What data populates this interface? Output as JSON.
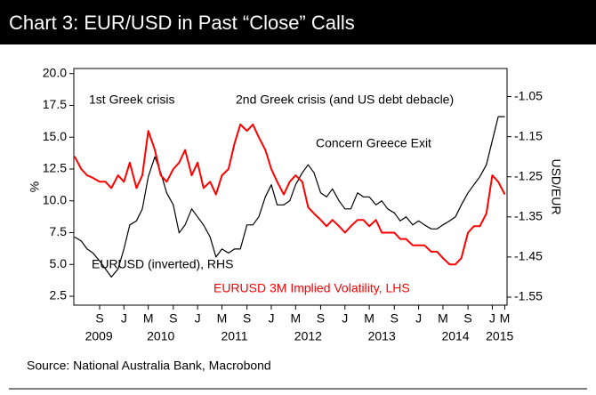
{
  "chart_data": {
    "type": "line",
    "title": "Chart 3: EUR/USD in Past “Close” Calls",
    "ylabel": "%",
    "y2label": "USD/EUR",
    "source": "Source: National Australia Bank, Macrobond",
    "annotations": [
      "1st Greek crisis",
      "2nd Greek crisis (and US debt debacle)",
      "Concern Greece Exit"
    ],
    "x": [
      2009.33,
      2009.42,
      2009.5,
      2009.58,
      2009.67,
      2009.75,
      2009.83,
      2009.92,
      2010,
      2010.08,
      2010.17,
      2010.25,
      2010.33,
      2010.42,
      2010.5,
      2010.58,
      2010.67,
      2010.75,
      2010.83,
      2010.92,
      2011,
      2011.08,
      2011.17,
      2011.25,
      2011.33,
      2011.42,
      2011.5,
      2011.58,
      2011.67,
      2011.75,
      2011.83,
      2011.92,
      2012,
      2012.08,
      2012.17,
      2012.25,
      2012.33,
      2012.42,
      2012.5,
      2012.58,
      2012.67,
      2012.75,
      2012.83,
      2012.92,
      2013,
      2013.08,
      2013.17,
      2013.25,
      2013.33,
      2013.42,
      2013.5,
      2013.58,
      2013.67,
      2013.75,
      2013.83,
      2013.92,
      2014,
      2014.08,
      2014.17,
      2014.25,
      2014.33,
      2014.42,
      2014.5,
      2014.58,
      2014.67,
      2014.75,
      2014.83,
      2014.92,
      2015,
      2015.08,
      2015.17
    ],
    "series": [
      {
        "name": "EURUSD (inverted), RHS",
        "color": "#000000",
        "axis": "y2",
        "values": [
          -1.4,
          -1.41,
          -1.43,
          -1.44,
          -1.46,
          -1.48,
          -1.5,
          -1.48,
          -1.43,
          -1.37,
          -1.36,
          -1.33,
          -1.25,
          -1.2,
          -1.24,
          -1.29,
          -1.32,
          -1.39,
          -1.37,
          -1.33,
          -1.35,
          -1.37,
          -1.4,
          -1.45,
          -1.43,
          -1.44,
          -1.43,
          -1.43,
          -1.37,
          -1.37,
          -1.35,
          -1.3,
          -1.27,
          -1.32,
          -1.32,
          -1.31,
          -1.27,
          -1.24,
          -1.22,
          -1.24,
          -1.29,
          -1.3,
          -1.28,
          -1.31,
          -1.33,
          -1.33,
          -1.29,
          -1.3,
          -1.3,
          -1.32,
          -1.31,
          -1.33,
          -1.34,
          -1.36,
          -1.35,
          -1.37,
          -1.36,
          -1.37,
          -1.38,
          -1.38,
          -1.37,
          -1.36,
          -1.35,
          -1.32,
          -1.29,
          -1.27,
          -1.25,
          -1.22,
          -1.16,
          -1.1,
          -1.1
        ]
      },
      {
        "name": "EURUSD 3M Implied Volatility, LHS",
        "color": "#ff0000",
        "axis": "y",
        "values": [
          13.5,
          12.5,
          12.0,
          11.8,
          11.5,
          11.5,
          11.0,
          12.0,
          11.5,
          13.0,
          11.0,
          12.0,
          15.5,
          14.0,
          12.0,
          11.5,
          12.5,
          13.0,
          14.0,
          12.0,
          13.0,
          11.0,
          11.5,
          10.5,
          12.0,
          12.5,
          14.5,
          16.0,
          15.5,
          16.0,
          15.0,
          14.0,
          12.5,
          11.5,
          10.5,
          11.5,
          12.0,
          11.5,
          9.5,
          9.0,
          8.5,
          8.0,
          8.5,
          8.0,
          7.5,
          8.0,
          8.5,
          8.5,
          8.0,
          8.5,
          7.5,
          7.5,
          7.5,
          7.0,
          7.0,
          6.5,
          6.5,
          6.5,
          6.0,
          6.0,
          5.5,
          5.0,
          5.0,
          5.5,
          7.5,
          8.0,
          8.0,
          9.0,
          12.0,
          11.5,
          10.5
        ]
      }
    ],
    "xlim": [
      2009.32,
      2015.2
    ],
    "xticks": [
      {
        "value": 2009.67,
        "label": "S"
      },
      {
        "value": 2010,
        "label": "J"
      },
      {
        "value": 2010.33,
        "label": "M"
      },
      {
        "value": 2010.67,
        "label": "S"
      },
      {
        "value": 2011,
        "label": "J"
      },
      {
        "value": 2011.33,
        "label": "M"
      },
      {
        "value": 2011.67,
        "label": "S"
      },
      {
        "value": 2012,
        "label": "J"
      },
      {
        "value": 2012.33,
        "label": "M"
      },
      {
        "value": 2012.67,
        "label": "S"
      },
      {
        "value": 2013,
        "label": "J"
      },
      {
        "value": 2013.33,
        "label": "M"
      },
      {
        "value": 2013.67,
        "label": "S"
      },
      {
        "value": 2014,
        "label": "J"
      },
      {
        "value": 2014.33,
        "label": "M"
      },
      {
        "value": 2014.67,
        "label": "S"
      },
      {
        "value": 2015,
        "label": "J"
      },
      {
        "value": 2015.17,
        "label": "M"
      }
    ],
    "year_labels": [
      2009,
      2010,
      2011,
      2012,
      2013,
      2014,
      2015
    ],
    "ylim": [
      1.8,
      20.4
    ],
    "yticks": [
      2.5,
      {
        "value": 5,
        "label": "5.0"
      },
      7.5,
      {
        "value": 10,
        "label": "10.0"
      },
      12.5,
      {
        "value": 15,
        "label": "15.0"
      },
      17.5,
      {
        "value": 20,
        "label": "20.0"
      }
    ],
    "y2lim": [
      -1.57,
      -0.98
    ],
    "y2ticks": [
      -1.55,
      -1.45,
      -1.35,
      -1.25,
      -1.15,
      -1.05
    ],
    "grid": false
  }
}
